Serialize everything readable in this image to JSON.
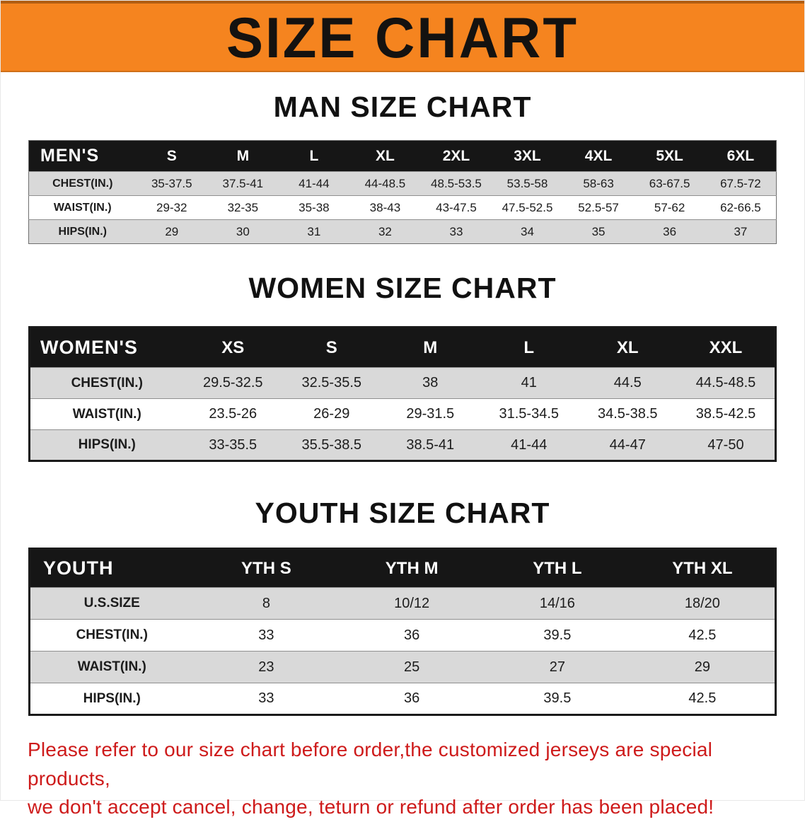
{
  "banner": {
    "title": "SIZE CHART"
  },
  "sections": [
    {
      "id": "mens",
      "heading": "MAN SIZE CHART",
      "corner_label": "MEN'S",
      "columns": [
        "S",
        "M",
        "L",
        "XL",
        "2XL",
        "3XL",
        "4XL",
        "5XL",
        "6XL"
      ],
      "rows": [
        {
          "label": "CHEST(IN.)",
          "values": [
            "35-37.5",
            "37.5-41",
            "41-44",
            "44-48.5",
            "48.5-53.5",
            "53.5-58",
            "58-63",
            "63-67.5",
            "67.5-72"
          ]
        },
        {
          "label": "WAIST(IN.)",
          "values": [
            "29-32",
            "32-35",
            "35-38",
            "38-43",
            "43-47.5",
            "47.5-52.5",
            "52.5-57",
            "57-62",
            "62-66.5"
          ]
        },
        {
          "label": "HIPS(IN.)",
          "values": [
            "29",
            "30",
            "31",
            "32",
            "33",
            "34",
            "35",
            "36",
            "37"
          ]
        }
      ]
    },
    {
      "id": "womens",
      "heading": "WOMEN SIZE CHART",
      "corner_label": "WOMEN'S",
      "columns": [
        "XS",
        "S",
        "M",
        "L",
        "XL",
        "XXL"
      ],
      "rows": [
        {
          "label": "CHEST(IN.)",
          "values": [
            "29.5-32.5",
            "32.5-35.5",
            "38",
            "41",
            "44.5",
            "44.5-48.5"
          ]
        },
        {
          "label": "WAIST(IN.)",
          "values": [
            "23.5-26",
            "26-29",
            "29-31.5",
            "31.5-34.5",
            "34.5-38.5",
            "38.5-42.5"
          ]
        },
        {
          "label": "HIPS(IN.)",
          "values": [
            "33-35.5",
            "35.5-38.5",
            "38.5-41",
            "41-44",
            "44-47",
            "47-50"
          ]
        }
      ]
    },
    {
      "id": "youth",
      "heading": "YOUTH SIZE CHART",
      "corner_label": "YOUTH",
      "columns": [
        "YTH S",
        "YTH M",
        "YTH L",
        "YTH XL"
      ],
      "rows": [
        {
          "label": "U.S.SIZE",
          "values": [
            "8",
            "10/12",
            "14/16",
            "18/20"
          ]
        },
        {
          "label": "CHEST(IN.)",
          "values": [
            "33",
            "36",
            "39.5",
            "42.5"
          ]
        },
        {
          "label": "WAIST(IN.)",
          "values": [
            "23",
            "25",
            "27",
            "29"
          ]
        },
        {
          "label": "HIPS(IN.)",
          "values": [
            "33",
            "36",
            "39.5",
            "42.5"
          ]
        }
      ]
    }
  ],
  "disclaimer": {
    "line1": "Please refer to our size chart before order,the customized jerseys are special products,",
    "line2": "we don't accept cancel, change, teturn or refund after order has been placed!"
  },
  "colors": {
    "banner_bg": "#f5841f",
    "header_bg": "#161616",
    "stripe_gray": "#d9d9d9",
    "disclaimer_red": "#ce1b1b"
  }
}
